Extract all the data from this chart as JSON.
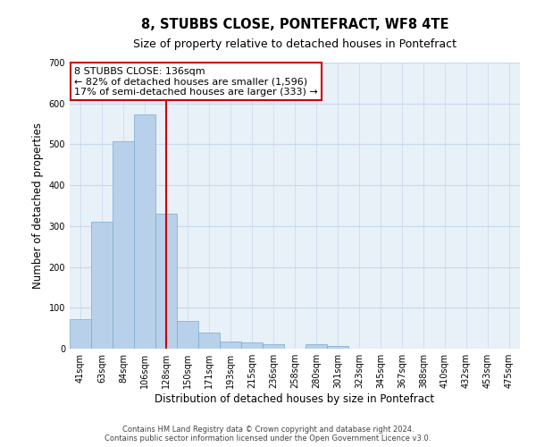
{
  "title": "8, STUBBS CLOSE, PONTEFRACT, WF8 4TE",
  "subtitle": "Size of property relative to detached houses in Pontefract",
  "xlabel": "Distribution of detached houses by size in Pontefract",
  "ylabel": "Number of detached properties",
  "bar_labels": [
    "41sqm",
    "63sqm",
    "84sqm",
    "106sqm",
    "128sqm",
    "150sqm",
    "171sqm",
    "193sqm",
    "215sqm",
    "236sqm",
    "258sqm",
    "280sqm",
    "301sqm",
    "323sqm",
    "345sqm",
    "367sqm",
    "388sqm",
    "410sqm",
    "432sqm",
    "453sqm",
    "475sqm"
  ],
  "bar_values": [
    72,
    311,
    507,
    574,
    331,
    68,
    39,
    18,
    15,
    10,
    0,
    10,
    6,
    0,
    0,
    0,
    0,
    0,
    0,
    0,
    0
  ],
  "bar_color": "#b8d0ea",
  "vline_color": "#cc0000",
  "vline_index": 4.5,
  "annotation_title": "8 STUBBS CLOSE: 136sqm",
  "annotation_line1": "← 82% of detached houses are smaller (1,596)",
  "annotation_line2": "17% of semi-detached houses are larger (333) →",
  "annotation_box_color": "#ffffff",
  "annotation_box_edgecolor": "#cc0000",
  "ylim": [
    0,
    700
  ],
  "yticks": [
    0,
    100,
    200,
    300,
    400,
    500,
    600,
    700
  ],
  "footer_line1": "Contains HM Land Registry data © Crown copyright and database right 2024.",
  "footer_line2": "Contains public sector information licensed under the Open Government Licence v3.0.",
  "title_fontsize": 10.5,
  "subtitle_fontsize": 9,
  "axis_label_fontsize": 8.5,
  "tick_fontsize": 7,
  "annotation_fontsize": 8,
  "footer_fontsize": 6,
  "bg_color": "#ffffff",
  "grid_color": "#c8d8ec",
  "plot_bg_color": "#e8f0f8"
}
